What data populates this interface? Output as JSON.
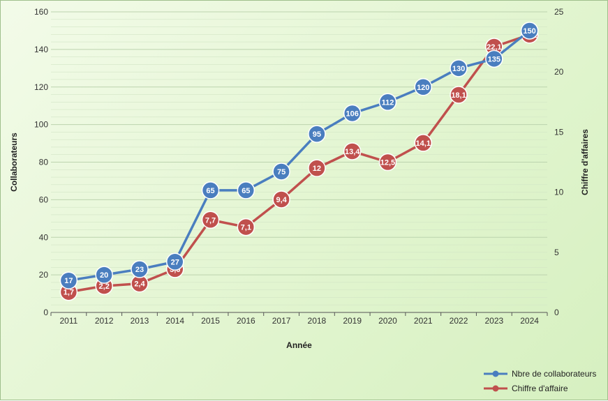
{
  "chart_data": {
    "type": "line",
    "categories": [
      "2011",
      "2012",
      "2013",
      "2014",
      "2015",
      "2016",
      "2017",
      "2018",
      "2019",
      "2020",
      "2021",
      "2022",
      "2023",
      "2024"
    ],
    "xlabel": "Année",
    "ylabel": "Collaborateurs",
    "y2label": "Chiffre d'affaires",
    "ylim": [
      0,
      160
    ],
    "y2lim": [
      0,
      25
    ],
    "yticks": [
      0,
      20,
      40,
      60,
      80,
      100,
      120,
      140,
      160
    ],
    "y2ticks": [
      0,
      5,
      10,
      15,
      20,
      25
    ],
    "grid": true,
    "legend_position": "bottom-right",
    "series": [
      {
        "name": "Nbre de collaborateurs",
        "axis": "left",
        "color": "#4a7ebf",
        "values": [
          17,
          20,
          23,
          27,
          65,
          65,
          75,
          95,
          106,
          112,
          120,
          130,
          135,
          150
        ],
        "labels": [
          "17",
          "20",
          "23",
          "27",
          "65",
          "65",
          "75",
          "95",
          "106",
          "112",
          "120",
          "130",
          "135",
          "150"
        ]
      },
      {
        "name": "Chiffre d'affaire",
        "axis": "right",
        "color": "#c0504d",
        "values": [
          1.7,
          2.2,
          2.4,
          3.6,
          7.7,
          7.1,
          9.4,
          12,
          13.4,
          12.5,
          14.1,
          18.1,
          22.1,
          23.1
        ],
        "labels": [
          "1,7",
          "2,2",
          "2,4",
          "3,6",
          "7,7",
          "7,1",
          "9,4",
          "12",
          "13,4",
          "12,5",
          "14,1",
          "18,1",
          "22,1",
          "23,1"
        ]
      }
    ]
  }
}
